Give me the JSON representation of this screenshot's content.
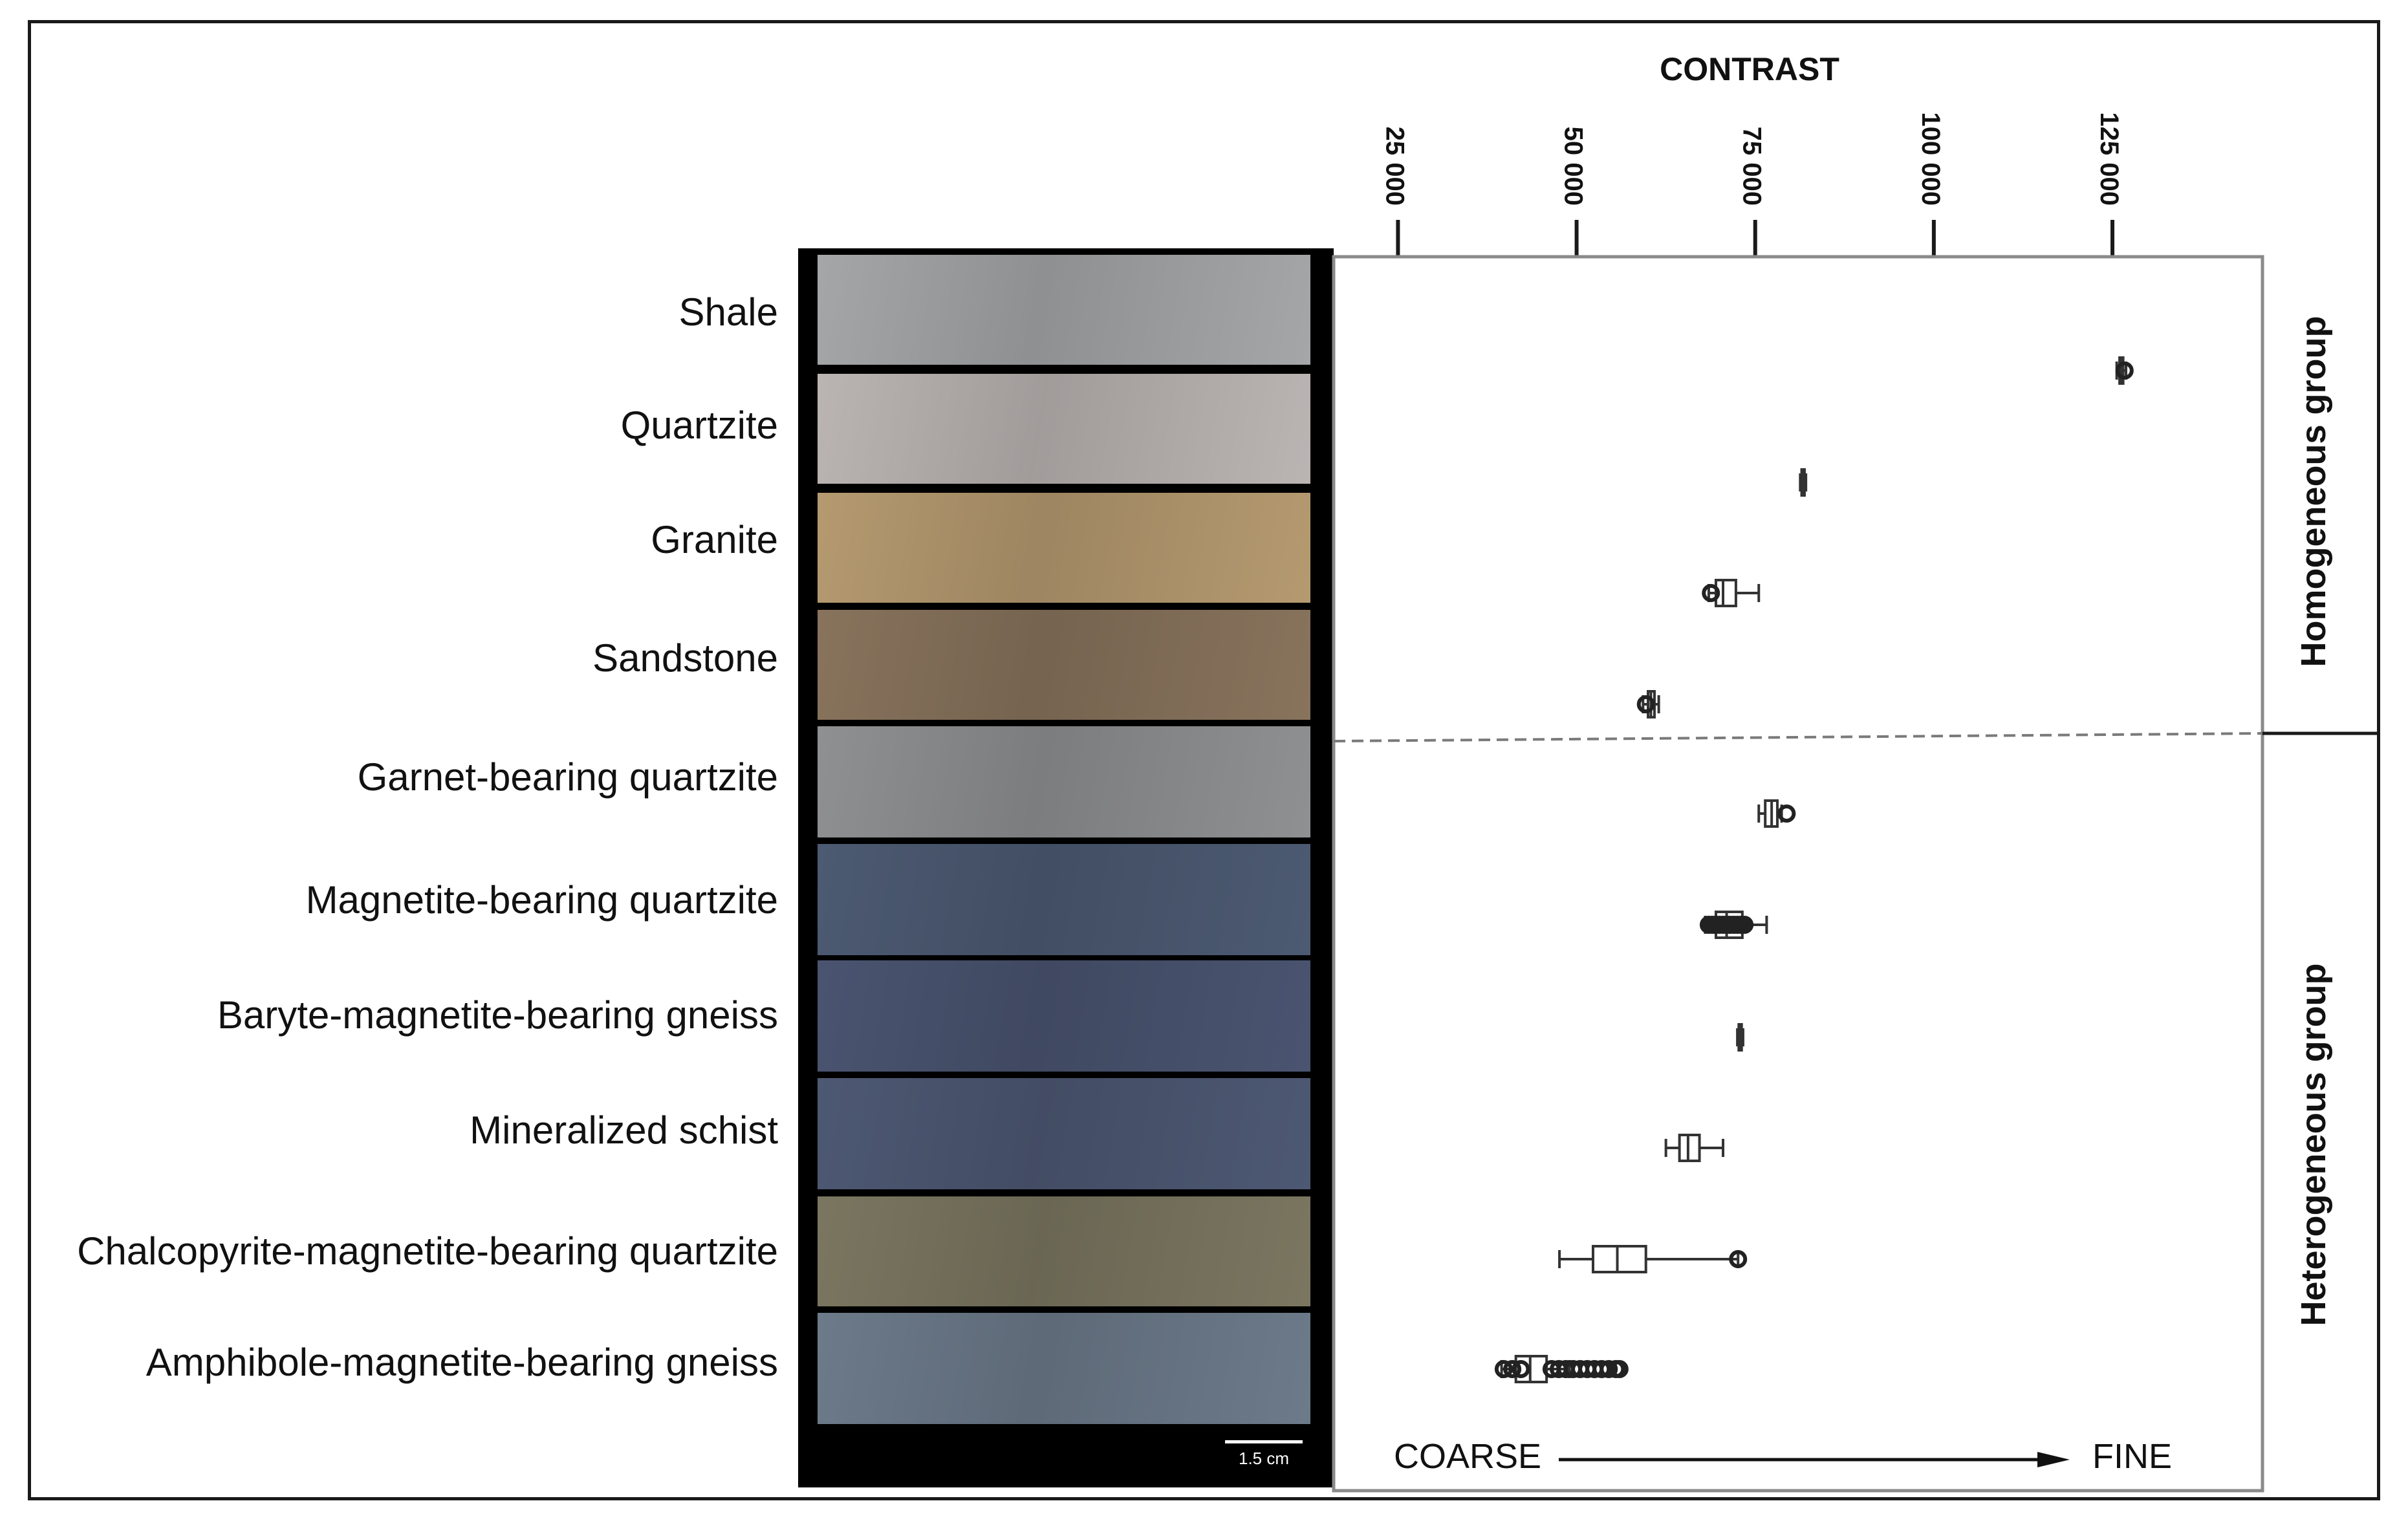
{
  "chart_data": {
    "type": "boxplot",
    "title": "CONTRAST",
    "x_ticks": [
      "25 000",
      "50 000",
      "75 000",
      "100 000",
      "125 000"
    ],
    "x_tick_values": [
      25000,
      50000,
      75000,
      100000,
      125000
    ],
    "xlim": [
      16000,
      146000
    ],
    "scale_note": {
      "left": "COARSE",
      "right": "FINE"
    },
    "groups": [
      {
        "name": "Homogeneous group",
        "members": [
          "Shale",
          "Quartzite",
          "Granite",
          "Sandstone"
        ]
      },
      {
        "name": "Heterogeneous group",
        "members": [
          "Garnet-bearing quartzite",
          "Magnetite-bearing quartzite",
          "Baryte-magnetite-bearing gneiss",
          "Mineralized schist",
          "Chalcopyrite-magnetite-bearing quartzite",
          "Amphibole-magnetite-bearing gneiss"
        ]
      }
    ],
    "series": [
      {
        "name": "Shale",
        "min": 125600,
        "q1": 126000,
        "median": 126200,
        "q3": 126500,
        "max": 126900,
        "outliers": [
          126700
        ]
      },
      {
        "name": "Quartzite",
        "min": 81300,
        "q1": 81500,
        "median": 81700,
        "q3": 81900,
        "max": 82100,
        "outliers": []
      },
      {
        "name": "Granite",
        "min": 68500,
        "q1": 69500,
        "median": 70500,
        "q3": 72300,
        "max": 75500,
        "outliers": [
          68800
        ]
      },
      {
        "name": "Sandstone",
        "min": 59300,
        "q1": 60000,
        "median": 60400,
        "q3": 60900,
        "max": 61500,
        "outliers": [
          59700
        ]
      },
      {
        "name": "Garnet-bearing quartzite",
        "min": 75500,
        "q1": 76400,
        "median": 77300,
        "q3": 78100,
        "max": 78700,
        "outliers": [
          79400
        ]
      },
      {
        "name": "Magnetite-bearing quartzite",
        "min": 68000,
        "q1": 69500,
        "median": 71000,
        "q3": 73200,
        "max": 76600,
        "outliers": [
          68500,
          69000,
          69500,
          70000,
          70500,
          71000,
          71500,
          72000,
          72500,
          73000,
          73500
        ]
      },
      {
        "name": "Baryte-magnetite-bearing gneiss",
        "min": 72500,
        "q1": 72700,
        "median": 72900,
        "q3": 73100,
        "max": 73300,
        "outliers": []
      },
      {
        "name": "Mineralized schist",
        "min": 62500,
        "q1": 64400,
        "median": 65600,
        "q3": 67200,
        "max": 70500,
        "outliers": []
      },
      {
        "name": "Chalcopyrite-magnetite-bearing quartzite",
        "min": 47600,
        "q1": 52300,
        "median": 55700,
        "q3": 59700,
        "max": 72600,
        "outliers": [
          72600
        ]
      },
      {
        "name": "Amphibole-magnetite-bearing gneiss",
        "min": 39500,
        "q1": 41500,
        "median": 43500,
        "q3": 45800,
        "max": 49000,
        "outliers": [
          39800,
          41000,
          42200,
          46500,
          47500,
          48500,
          49500,
          50500,
          51500,
          52500,
          53500,
          54500,
          55500,
          56000
        ]
      }
    ]
  },
  "rock_labels": [
    "Shale",
    "Quartzite",
    "Granite",
    "Sandstone",
    "Garnet-bearing quartzite",
    "Magnetite-bearing quartzite",
    "Baryte-magnetite-bearing gneiss",
    "Mineralized schist",
    "Chalcopyrite-magnetite-bearing quartzite",
    "Amphibole-magnetite-bearing gneiss"
  ],
  "swatch_colors": [
    "#a4a6a8",
    "#bab4b2",
    "#b59a70",
    "#88735c",
    "#8f9092",
    "#4c5a72",
    "#4a5470",
    "#4d5873",
    "#7a7660",
    "#6c7a8a"
  ],
  "scale_bar": "1.5 cm",
  "colors": {
    "axis": "#1a1a1a",
    "box": "#333333",
    "swatch_border": "#000000"
  }
}
